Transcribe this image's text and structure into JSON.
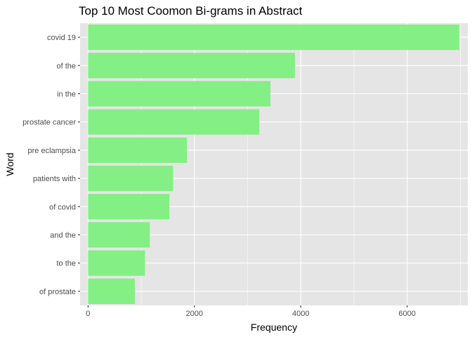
{
  "chart_data": {
    "type": "bar",
    "orientation": "horizontal",
    "title": "Top 10 Most Coomon Bi-grams in Abstract",
    "xlabel": "Frequency",
    "ylabel": "Word",
    "categories": [
      "covid 19",
      "of the",
      "in the",
      "prostate cancer",
      "pre eclampsia",
      "patients with",
      "of covid",
      "and the",
      "to the",
      "of prostate"
    ],
    "values": [
      6980,
      3890,
      3430,
      3220,
      1860,
      1600,
      1530,
      1160,
      1070,
      880
    ],
    "xlim": [
      -150,
      7140
    ],
    "xticks": [
      0,
      2000,
      4000,
      6000
    ],
    "xtick_labels": [
      "0",
      "2000",
      "4000",
      "6000"
    ],
    "grid": true,
    "colors": {
      "bar": "#84EF84",
      "panel": "#E5E5E5",
      "grid": "#FFFFFF"
    }
  }
}
